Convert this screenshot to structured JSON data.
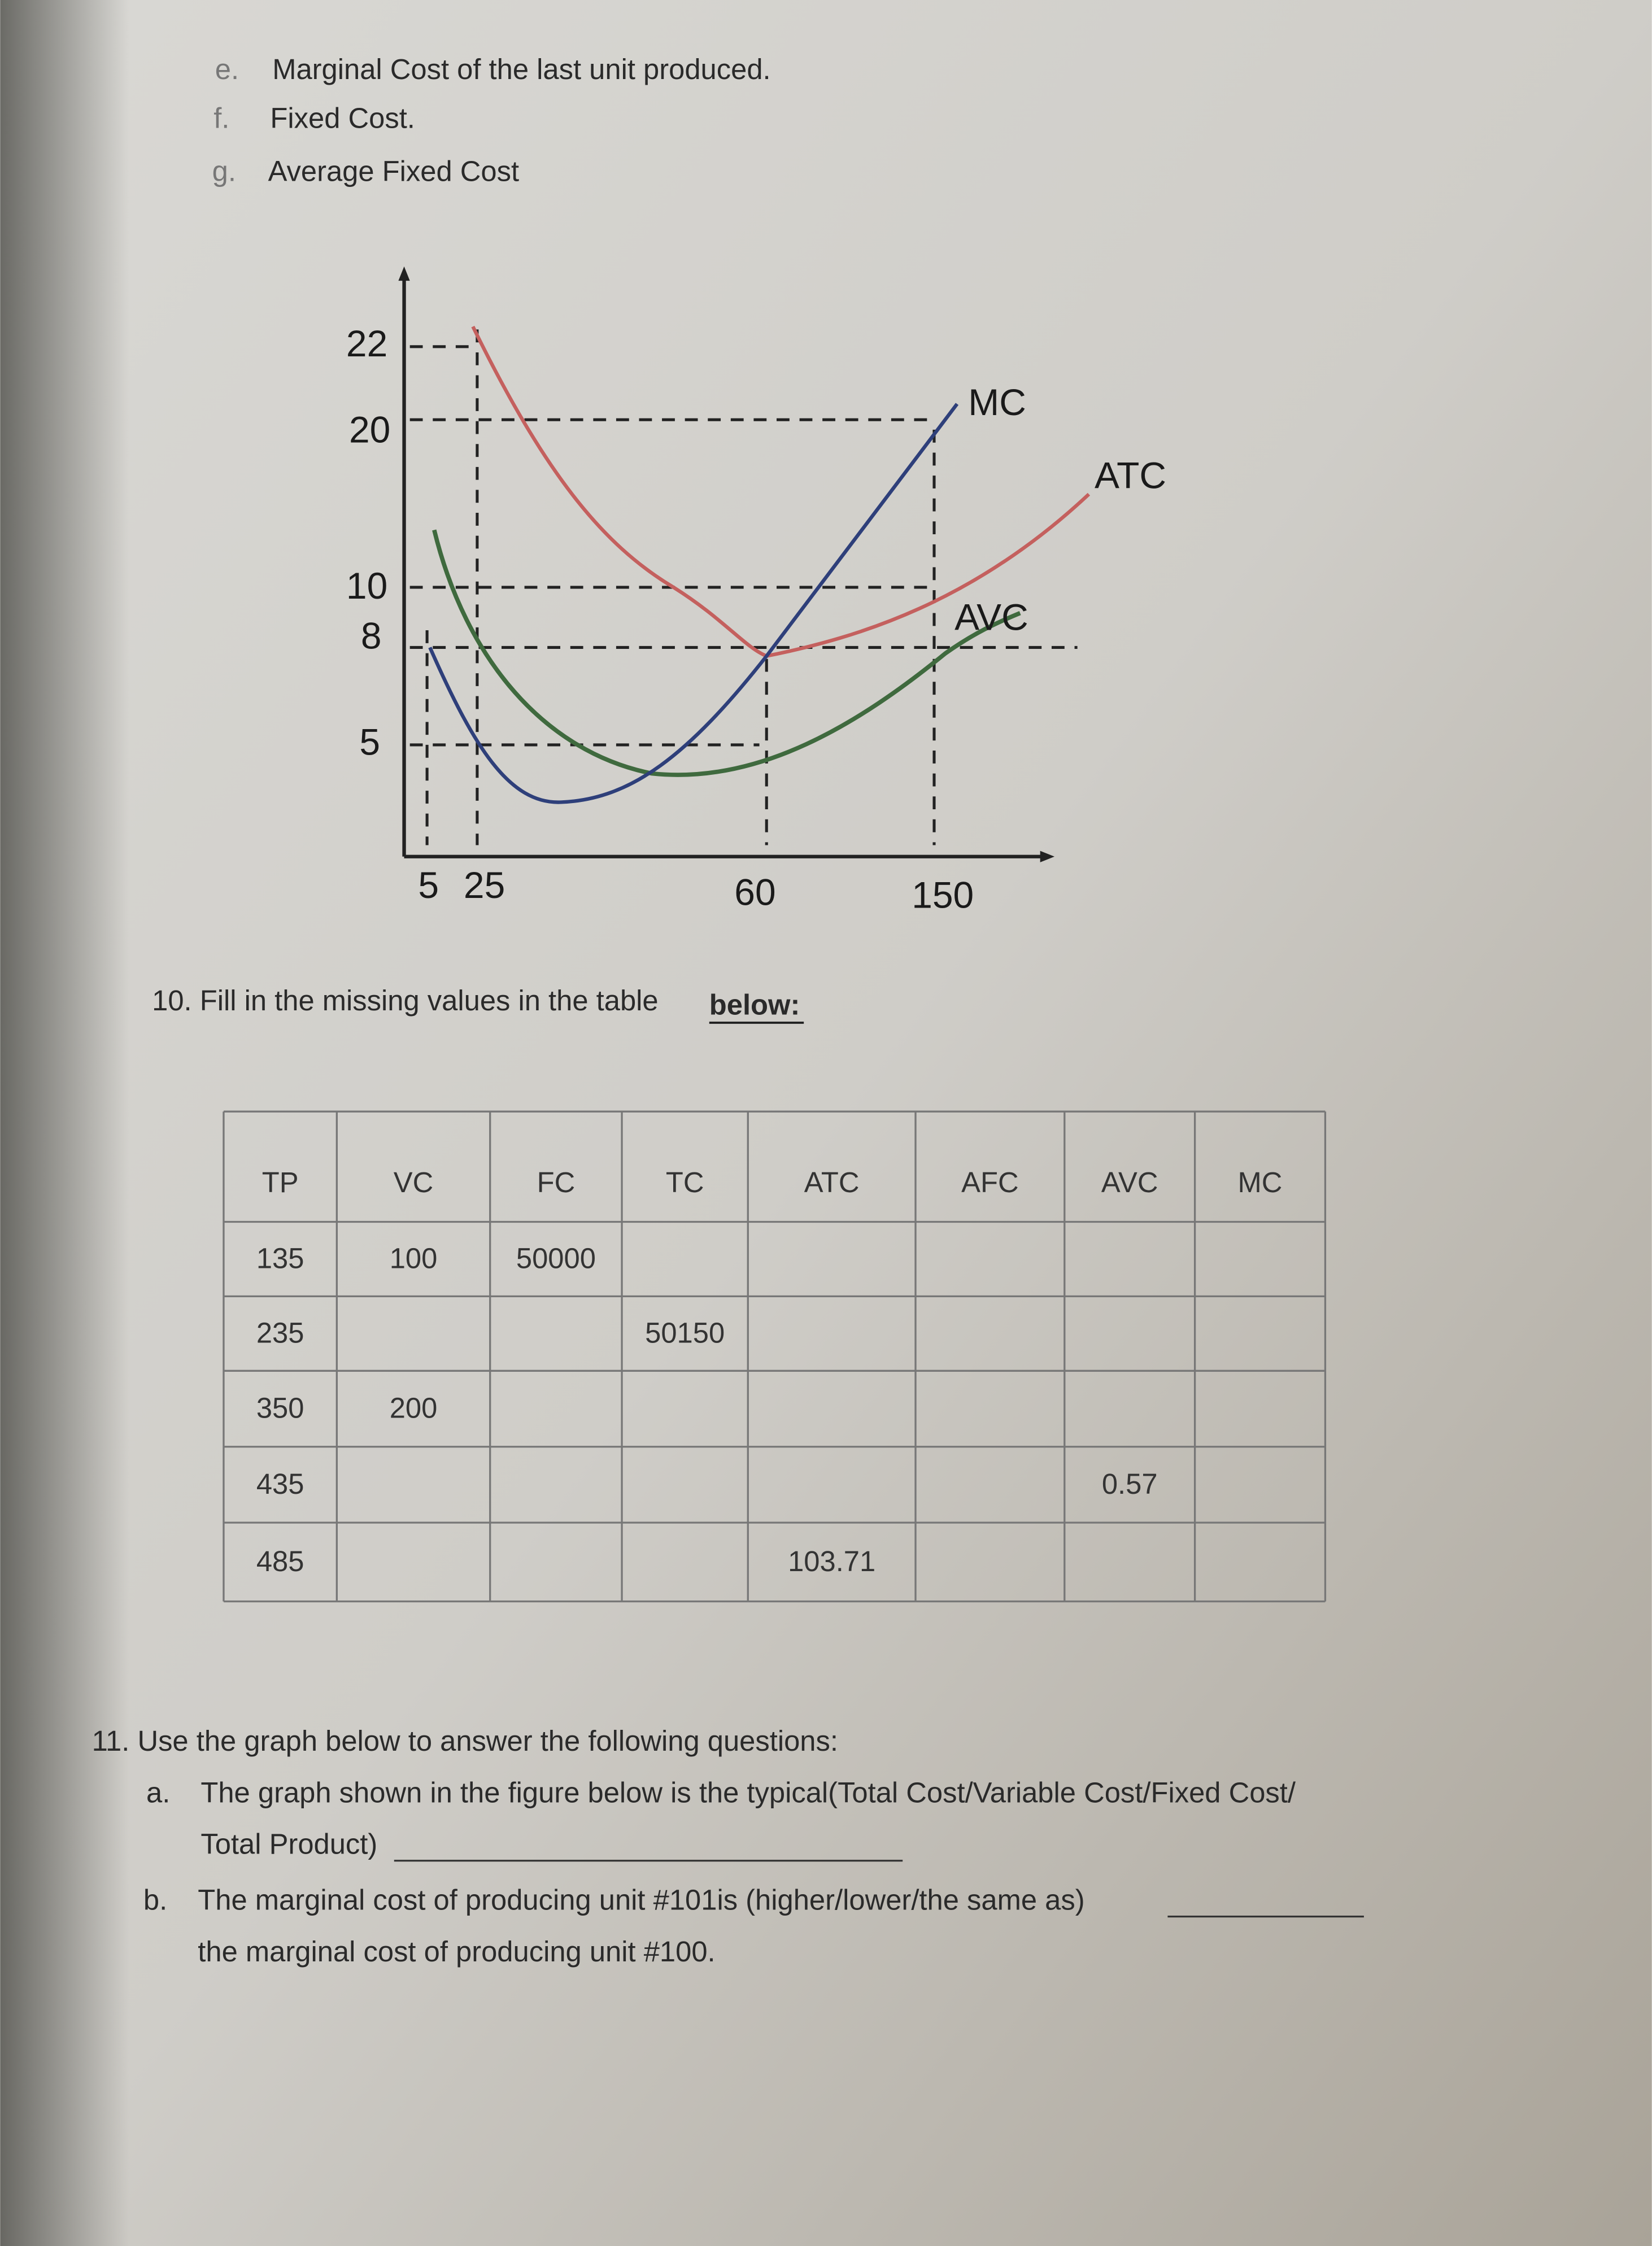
{
  "list_items": [
    {
      "marker": "e.",
      "text": "Marginal Cost of the last unit produced."
    },
    {
      "marker": "f.",
      "text": "Fixed Cost."
    },
    {
      "marker": "g.",
      "text": "Average Fixed Cost"
    }
  ],
  "graph": {
    "y_labels": [
      "22",
      "20",
      "10",
      "8",
      "5"
    ],
    "x_labels": [
      "5",
      "25",
      "60",
      "150"
    ],
    "curve_labels": [
      "MC",
      "ATC",
      "AVC"
    ]
  },
  "question10": {
    "text": "10. Fill in the missing values in the table",
    "emphasis": "below:"
  },
  "table": {
    "header": [
      "TP",
      "VC",
      "FC",
      "TC",
      "ATC",
      "AFC",
      "AVC",
      "MC"
    ],
    "rows": [
      [
        "135",
        "100",
        "50000",
        null,
        null,
        null,
        null,
        null
      ],
      [
        "235",
        null,
        null,
        "50150",
        null,
        null,
        null,
        null
      ],
      [
        "350",
        "200",
        null,
        null,
        null,
        null,
        null,
        null
      ],
      [
        "435",
        null,
        null,
        null,
        null,
        null,
        "0.57",
        null
      ],
      [
        "485",
        null,
        null,
        null,
        "103.71",
        null,
        null,
        null
      ]
    ]
  },
  "question11": {
    "text": "11. Use the graph below to answer the following questions:",
    "items": [
      {
        "marker": "a.",
        "lines": [
          "The graph shown in the figure below is the typical(Total Cost/Variable Cost/Fixed Cost/",
          "Total Product)"
        ]
      },
      {
        "marker": "b.",
        "lines": [
          "The marginal cost of producing unit #101is (higher/lower/the same as)",
          "the marginal cost of producing unit #100."
        ]
      }
    ]
  }
}
